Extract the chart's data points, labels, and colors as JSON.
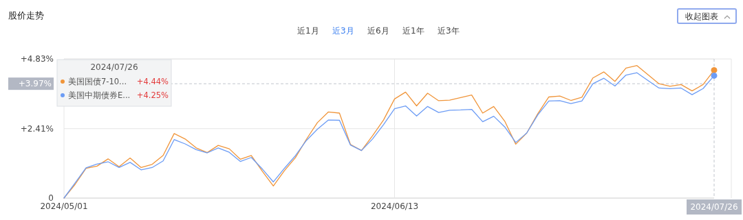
{
  "chart_data": {
    "type": "line",
    "title": "股价走势",
    "annotations": [
      "近1月",
      "近3月",
      "近6月",
      "近1年",
      "近3年",
      "收起图表",
      "+4.44%",
      "+4.25%"
    ],
    "categories": [
      "2024/05/01",
      null,
      null,
      null,
      null,
      null,
      null,
      null,
      null,
      null,
      null,
      null,
      null,
      null,
      null,
      null,
      null,
      null,
      null,
      null,
      null,
      null,
      null,
      null,
      null,
      null,
      null,
      null,
      null,
      null,
      "2024/06/13",
      null,
      null,
      null,
      null,
      null,
      null,
      null,
      null,
      null,
      null,
      null,
      null,
      null,
      null,
      null,
      null,
      null,
      null,
      null,
      null,
      null,
      null,
      null,
      null,
      null,
      null,
      null,
      null,
      "2024/07/26"
    ],
    "series": [
      {
        "name": "美国国债7-10...",
        "color": "#f0953a",
        "values": [
          0,
          0.47,
          1.03,
          1.11,
          1.36,
          1.09,
          1.39,
          1.06,
          1.17,
          1.48,
          2.24,
          2.05,
          1.74,
          1.58,
          1.83,
          1.71,
          1.35,
          1.48,
          0.93,
          0.42,
          0.95,
          1.4,
          2.04,
          2.62,
          2.99,
          2.95,
          1.86,
          1.65,
          2.16,
          2.71,
          3.44,
          3.68,
          3.2,
          3.64,
          3.38,
          3.4,
          3.49,
          3.58,
          2.95,
          3.18,
          2.67,
          1.87,
          2.26,
          2.93,
          3.51,
          3.54,
          3.39,
          3.5,
          4.17,
          4.38,
          4.05,
          4.51,
          4.6,
          4.28,
          3.97,
          3.88,
          3.94,
          3.72,
          3.94,
          4.44
        ]
      },
      {
        "name": "美国中期债券E...",
        "color": "#6c9cf5",
        "values": [
          0,
          0.52,
          1.05,
          1.18,
          1.26,
          1.06,
          1.24,
          0.98,
          1.06,
          1.29,
          2.03,
          1.88,
          1.68,
          1.57,
          1.74,
          1.59,
          1.27,
          1.41,
          1.01,
          0.56,
          1.03,
          1.47,
          2,
          2.39,
          2.71,
          2.7,
          1.84,
          1.65,
          2.05,
          2.55,
          3.1,
          3.2,
          2.85,
          3.18,
          2.97,
          3.05,
          3.06,
          3.08,
          2.65,
          2.84,
          2.47,
          1.93,
          2.26,
          2.89,
          3.37,
          3.38,
          3.28,
          3.37,
          3.97,
          4.16,
          3.89,
          4.27,
          4.35,
          4.08,
          3.82,
          3.8,
          3.82,
          3.59,
          3.8,
          4.25
        ]
      }
    ],
    "legend_title": "2024/07/26",
    "legend": "top left",
    "ylim": [
      0,
      4.83
    ],
    "yticks": [
      {
        "value": 0,
        "label": "0"
      },
      {
        "value": 2.41,
        "label": "+2.41%"
      },
      {
        "value": 4.83,
        "label": "+4.83%"
      }
    ],
    "ref_lines": [
      {
        "axis": "y",
        "value": 3.97,
        "label": "+3.97%",
        "line_style": "dashed",
        "color": "#c0c4cc"
      },
      {
        "axis": "x",
        "value": "2024/07/26",
        "line_style": "dashed",
        "color": "#c0c4cc"
      }
    ],
    "grid": true,
    "marker": "none",
    "line_style": "solid"
  }
}
